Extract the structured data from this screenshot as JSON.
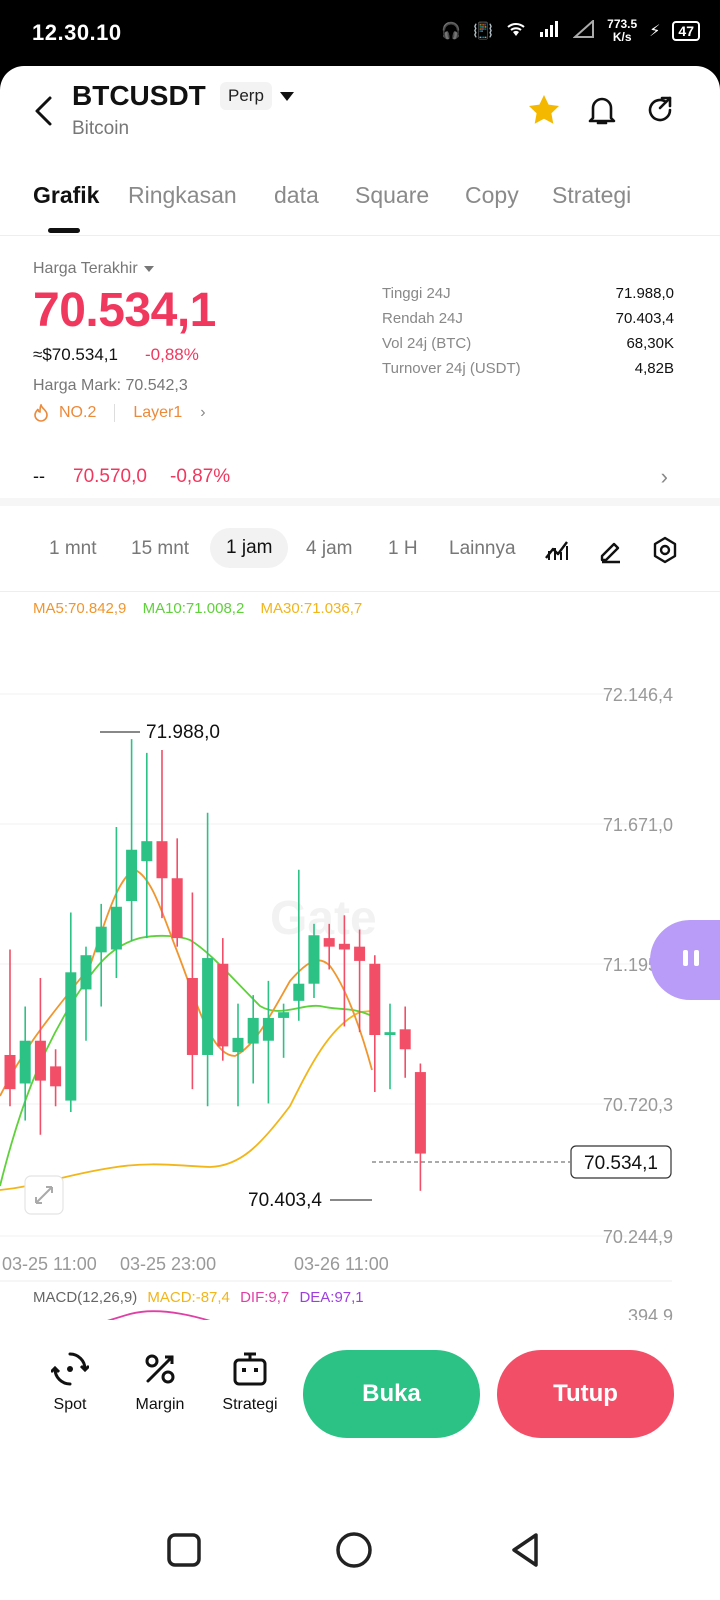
{
  "status": {
    "time": "12.30.10",
    "speed_value": "773.5",
    "speed_unit": "K/s",
    "battery": "47"
  },
  "header": {
    "symbol": "BTCUSDT",
    "contract_type": "Perp",
    "name": "Bitcoin"
  },
  "tabs": [
    "Grafik",
    "Ringkasan",
    "data",
    "Square",
    "Copy",
    "Strategi"
  ],
  "price": {
    "label": "Harga Terakhir",
    "last": "70.534,1",
    "usd": "≈$70.534,1",
    "change_pct": "-0,88%",
    "mark_label": "Harga Mark:",
    "mark_value": "70.542,3",
    "tag_rank": "NO.2",
    "tag_sector": "Layer1"
  },
  "stats": [
    {
      "label": "Tinggi 24J",
      "value": "71.988,0"
    },
    {
      "label": "Rendah 24J",
      "value": "70.403,4"
    },
    {
      "label": "Vol 24j (BTC)",
      "value": "68,30K"
    },
    {
      "label": "Turnover 24j (USDT)",
      "value": "4,82B"
    }
  ],
  "ticker": {
    "dash": "--",
    "price": "70.570,0",
    "pct": "-0,87%"
  },
  "intervals": [
    "1 mnt",
    "15 mnt",
    "1 jam",
    "4 jam",
    "1 H",
    "Lainnya"
  ],
  "active_interval": "1 jam",
  "ma": {
    "ma5": "MA5:70.842,9",
    "ma10": "MA10:71.008,2",
    "ma30": "MA30:71.036,7"
  },
  "macd": {
    "label": "MACD(12,26,9)",
    "macd": "MACD:-87,4",
    "dif": "DIF:9,7",
    "dea": "DEA:97,1",
    "axis_top": "394,9"
  },
  "chart": {
    "y_ticks": [
      "72.146,4",
      "71.671,0",
      "71.195,7",
      "70.720,3",
      "70.244,9"
    ],
    "x_ticks": [
      "03-25 11:00",
      "03-25 23:00",
      "03-26 11:00"
    ],
    "high_label": "71.988,0",
    "low_label": "70.403,4",
    "current_label": "70.534,1",
    "watermark": "Gate"
  },
  "colors": {
    "up": "#2cc185",
    "down": "#f24e67",
    "ma5": "#f0962e",
    "ma10": "#5fd13b",
    "ma30": "#f2b51a",
    "price_red": "#f0385f"
  },
  "chart_data": {
    "type": "candlestick",
    "ylim": [
      70244.9,
      72146.4
    ],
    "candles": [
      {
        "o": 70880,
        "h": 71250,
        "l": 70700,
        "c": 70760,
        "dir": "down"
      },
      {
        "o": 70780,
        "h": 71050,
        "l": 70650,
        "c": 70930,
        "dir": "up"
      },
      {
        "o": 70930,
        "h": 71150,
        "l": 70600,
        "c": 70790,
        "dir": "down"
      },
      {
        "o": 70840,
        "h": 70900,
        "l": 70700,
        "c": 70770,
        "dir": "down"
      },
      {
        "o": 70720,
        "h": 71380,
        "l": 70680,
        "c": 71170,
        "dir": "up"
      },
      {
        "o": 71110,
        "h": 71260,
        "l": 70930,
        "c": 71230,
        "dir": "up"
      },
      {
        "o": 71240,
        "h": 71410,
        "l": 71050,
        "c": 71330,
        "dir": "up"
      },
      {
        "o": 71250,
        "h": 71680,
        "l": 71150,
        "c": 71400,
        "dir": "up"
      },
      {
        "o": 71420,
        "h": 71988,
        "l": 71280,
        "c": 71600,
        "dir": "up"
      },
      {
        "o": 71560,
        "h": 71940,
        "l": 71290,
        "c": 71630,
        "dir": "up"
      },
      {
        "o": 71630,
        "h": 71950,
        "l": 71360,
        "c": 71500,
        "dir": "down"
      },
      {
        "o": 71500,
        "h": 71640,
        "l": 71260,
        "c": 71290,
        "dir": "down"
      },
      {
        "o": 71150,
        "h": 71450,
        "l": 70760,
        "c": 70880,
        "dir": "down"
      },
      {
        "o": 70880,
        "h": 71730,
        "l": 70700,
        "c": 71220,
        "dir": "up"
      },
      {
        "o": 71200,
        "h": 71290,
        "l": 70860,
        "c": 70910,
        "dir": "down"
      },
      {
        "o": 70890,
        "h": 71060,
        "l": 70700,
        "c": 70940,
        "dir": "up"
      },
      {
        "o": 70920,
        "h": 71090,
        "l": 70780,
        "c": 71010,
        "dir": "up"
      },
      {
        "o": 70930,
        "h": 71140,
        "l": 70710,
        "c": 71010,
        "dir": "up"
      },
      {
        "o": 71010,
        "h": 71060,
        "l": 70870,
        "c": 71030,
        "dir": "up"
      },
      {
        "o": 71070,
        "h": 71530,
        "l": 71000,
        "c": 71130,
        "dir": "up"
      },
      {
        "o": 71130,
        "h": 71340,
        "l": 71080,
        "c": 71300,
        "dir": "up"
      },
      {
        "o": 71290,
        "h": 71340,
        "l": 71180,
        "c": 71260,
        "dir": "down"
      },
      {
        "o": 71270,
        "h": 71370,
        "l": 70980,
        "c": 71250,
        "dir": "down"
      },
      {
        "o": 71260,
        "h": 71320,
        "l": 70960,
        "c": 71210,
        "dir": "down"
      },
      {
        "o": 71200,
        "h": 71230,
        "l": 70750,
        "c": 70950,
        "dir": "down"
      },
      {
        "o": 70950,
        "h": 71060,
        "l": 70760,
        "c": 70960,
        "dir": "up"
      },
      {
        "o": 70970,
        "h": 71050,
        "l": 70800,
        "c": 70900,
        "dir": "down"
      },
      {
        "o": 70820,
        "h": 70850,
        "l": 70403.4,
        "c": 70534.1,
        "dir": "down"
      }
    ],
    "macd_hist_green": 10
  },
  "bottom": {
    "spot": "Spot",
    "margin": "Margin",
    "strategi": "Strategi",
    "buka": "Buka",
    "tutup": "Tutup"
  }
}
